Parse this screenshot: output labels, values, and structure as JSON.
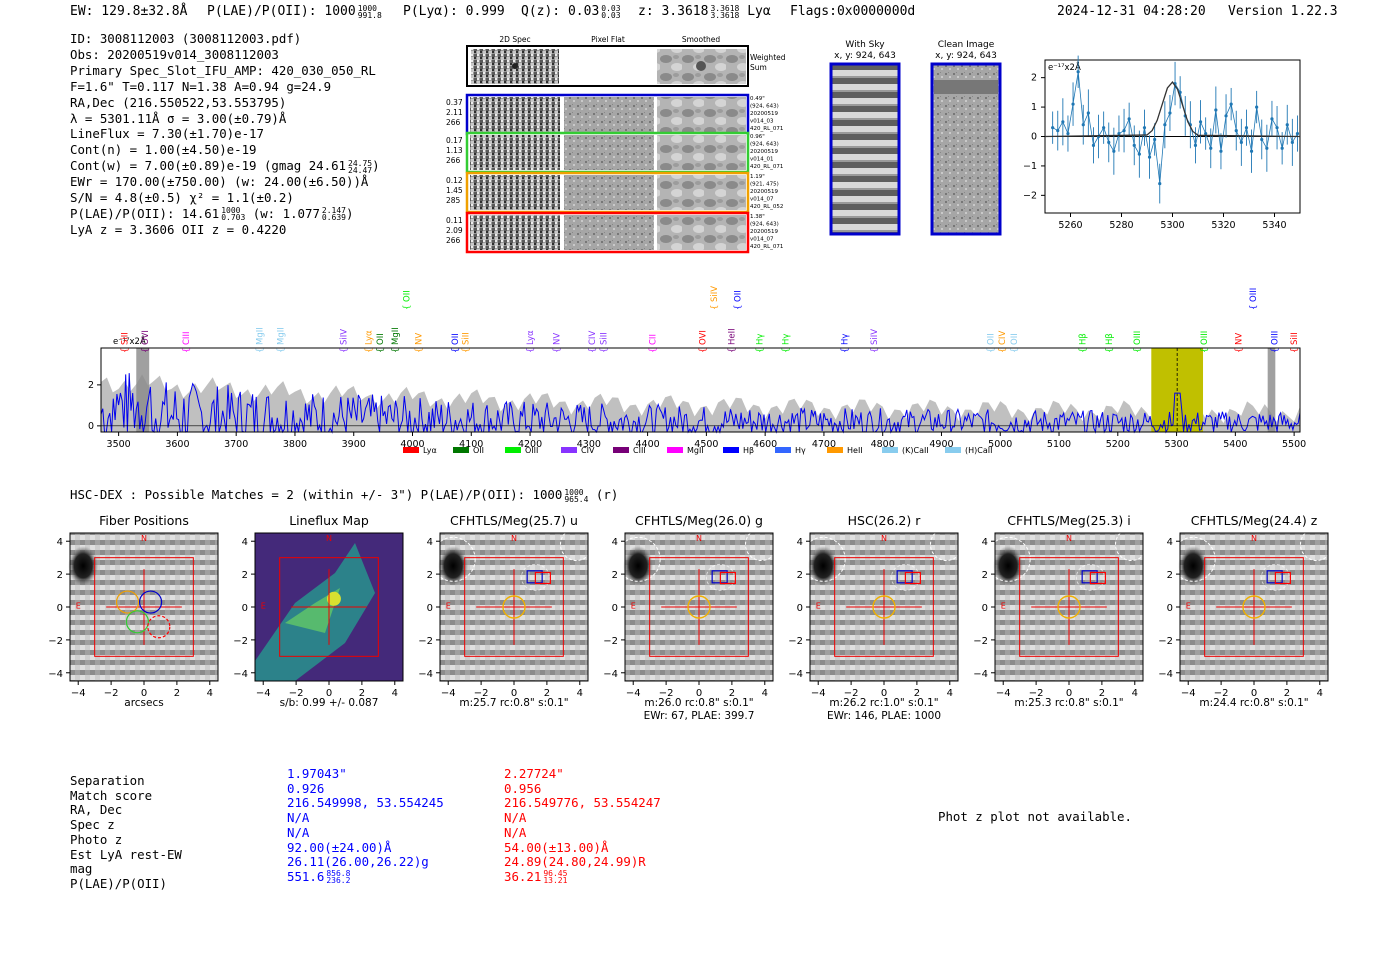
{
  "header": {
    "ew": "EW: 129.8±32.8Å",
    "plae": "P(LAE)/P(OII): 1000",
    "plae_hi": "1000",
    "plae_lo": "991.8",
    "plya": "P(Lyα): 0.999",
    "qz": "Q(z): 0.03",
    "qz_hi": "0.03",
    "qz_lo": "0.03",
    "z": "z: 3.3618",
    "z_hi": "3.3618",
    "z_lo": "3.3618",
    "line": "Lyα",
    "flags": "Flags:0x0000000d",
    "timestamp": "2024-12-31 04:28:20",
    "version": "Version 1.22.3"
  },
  "info": {
    "id": "ID: 3008112003 (3008112003.pdf)",
    "obs": "Obs: 20200519v014_3008112003",
    "primary": "Primary Spec_Slot_IFU_AMP: 420_030_050_RL",
    "fparams": "F=1.6\"  T=0.117  N=1.38  A=0.94  g=24.9",
    "radec": "RA,Dec (216.550522,53.553795)",
    "lambda": "λ = 5301.11Å  σ = 3.00(±0.79)Å",
    "lineflux": "LineFlux = 7.30(±1.70)e-17",
    "contn": "Cont(n) = 1.00(±4.50)e-19",
    "contw": "Cont(w) = 7.00(±0.89)e-19 (gmag 24.61",
    "gmag_hi": "24.75",
    "gmag_lo": "24.47",
    "ewr": "EWr = 170.00(±750.00) (w: 24.00(±6.50))Å",
    "sn": "S/N = 4.8(±0.5)  χ² = 1.1(±0.2)",
    "plae": "P(LAE)/P(OII): 14.61",
    "plae_hi": "1000",
    "plae_lo": "0.703",
    "plae_w": "(w: 1.077",
    "plae_w_hi": "2.147",
    "plae_w_lo": "0.639",
    "lyaz": "LyA z = 3.3606  OII z = 0.4220"
  },
  "cutouts": {
    "col_2dspec": "2D Spec",
    "col_pixflat": "Pixel Flat",
    "col_smoothed": "Smoothed",
    "weighted": "Weighted",
    "sum": "Sum",
    "rows": [
      {
        "w": [
          "0.37",
          "2.11",
          "266"
        ],
        "meta": [
          "0.49\"",
          "(924, 643)",
          "20200519",
          "v014_03",
          "420_RL_071"
        ],
        "color": "#0000cc"
      },
      {
        "w": [
          "0.17",
          "1.13",
          "266"
        ],
        "meta": [
          "0.96\"",
          "(924, 643)",
          "20200519",
          "v014_01",
          "420_RL_071"
        ],
        "color": "#33cc33"
      },
      {
        "w": [
          "0.12",
          "1.45",
          "285"
        ],
        "meta": [
          "1.19\"",
          "(921, 475)",
          "20200519",
          "v014_07",
          "420_RL_052"
        ],
        "color": "#f0a000"
      },
      {
        "w": [
          "0.11",
          "2.09",
          "266"
        ],
        "meta": [
          "1.38\"",
          "(924, 643)",
          "20200519",
          "v014_07",
          "420_RL_071"
        ],
        "color": "#ff0000"
      }
    ]
  },
  "sky": {
    "with_sky": "With Sky",
    "with_sky_xy": "x, y: 924, 643",
    "clean": "Clean Image",
    "clean_xy": "x, y: 924, 643"
  },
  "zoom_plot": {
    "unit": "e⁻¹⁷x2Å"
  },
  "full_spec": {
    "unit": "e⁻¹⁷x2Å"
  },
  "hsc": {
    "line": "HSC-DEX : Possible Matches = 2 (within +/- 3\")  P(LAE)/P(OII): 1000",
    "hi": "1000",
    "lo": "965.4",
    "band": "(r)"
  },
  "panels": [
    {
      "title": "Fiber Positions",
      "caption": [
        "arcsecs"
      ]
    },
    {
      "title": "Lineflux Map",
      "caption": [
        "s/b: 0.99 +/- 0.087"
      ]
    },
    {
      "title": "CFHTLS/Meg(25.7) u",
      "caption": [
        "m:25.7 rc:0.8\"  s:0.1\""
      ]
    },
    {
      "title": "CFHTLS/Meg(26.0) g",
      "caption": [
        "m:26.0 rc:0.8\"  s:0.1\"",
        "EWr: 67, PLAE: 399.7"
      ]
    },
    {
      "title": "HSC(26.2) r",
      "caption": [
        "m:26.2 rc:1.0\"  s:0.1\"",
        "EWr: 146, PLAE: 1000"
      ]
    },
    {
      "title": "CFHTLS/Meg(25.3) i",
      "caption": [
        "m:25.3 rc:0.8\"  s:0.1\""
      ]
    },
    {
      "title": "CFHTLS/Meg(24.4) z",
      "caption": [
        "m:24.4 rc:0.8\"  s:0.1\""
      ]
    }
  ],
  "matches": {
    "labels": [
      "Separation",
      "Match score",
      "RA, Dec",
      "Spec z",
      "Photo z",
      "Est LyA rest-EW",
      "mag",
      "P(LAE)/P(OII)"
    ],
    "blue": [
      "1.97043\"",
      "0.926",
      "216.549998, 53.554245",
      "N/A",
      "N/A",
      "92.00(±24.00)Å",
      "26.11(26.00,26.22)g",
      "551.6"
    ],
    "blue_hi": "856.8",
    "blue_lo": "236.2",
    "red": [
      "2.27724\"",
      "0.956",
      "216.549776, 53.554247",
      "N/A",
      "N/A",
      "54.00(±13.00)Å",
      "24.89(24.80,24.99)R",
      "36.21"
    ],
    "red_hi": "96.45",
    "red_lo": "13.21",
    "photz_msg": "Phot z plot not available."
  },
  "chart_data": [
    {
      "type": "line",
      "title": "",
      "xlabel": "",
      "ylabel": "e-17x2Å",
      "xlim": [
        5250,
        5350
      ],
      "ylim": [
        -2.6,
        2.6
      ],
      "xticks": [
        5260,
        5280,
        5300,
        5320,
        5340
      ],
      "yticks": [
        -2,
        -1,
        0,
        1,
        2
      ],
      "series": [
        {
          "name": "data",
          "x": [
            5253,
            5255,
            5257,
            5259,
            5261,
            5263,
            5265,
            5267,
            5269,
            5271,
            5273,
            5275,
            5277,
            5279,
            5281,
            5283,
            5285,
            5287,
            5289,
            5291,
            5293,
            5295,
            5297,
            5299,
            5301,
            5303,
            5305,
            5307,
            5309,
            5311,
            5313,
            5315,
            5317,
            5319,
            5321,
            5323,
            5325,
            5327,
            5329,
            5331,
            5333,
            5335,
            5337,
            5339,
            5341,
            5343,
            5345,
            5347,
            5349
          ],
          "values": [
            0.3,
            0.2,
            0.5,
            0.1,
            1.1,
            2.2,
            0.4,
            0.8,
            -0.3,
            0.0,
            0.3,
            -0.2,
            -0.5,
            0.1,
            0.2,
            0.6,
            -0.3,
            -0.6,
            0.3,
            -0.7,
            -0.1,
            -1.6,
            0.4,
            0.8,
            1.8,
            1.5,
            0.7,
            0.4,
            -0.3,
            0.5,
            0.1,
            -0.4,
            0.9,
            -0.5,
            0.7,
            1.1,
            0.2,
            -0.2,
            0.3,
            -0.5,
            1.0,
            -0.1,
            -0.4,
            0.6,
            0.3,
            -0.4,
            0.4,
            -0.2,
            0.1
          ]
        },
        {
          "name": "gaussian fit",
          "x": [
            5250,
            5290,
            5292,
            5294,
            5296,
            5298,
            5300,
            5302,
            5304,
            5306,
            5308,
            5310,
            5350
          ],
          "values": [
            0,
            0.05,
            0.2,
            0.55,
            1.1,
            1.65,
            1.85,
            1.6,
            1.05,
            0.5,
            0.17,
            0.04,
            0
          ]
        }
      ]
    },
    {
      "type": "line",
      "title": "",
      "ylabel": "e-17x2Å",
      "xlim": [
        3470,
        5510
      ],
      "ylim": [
        -0.3,
        3.8
      ],
      "xticks": [
        3500,
        3600,
        3700,
        3800,
        3900,
        4000,
        4100,
        4200,
        4300,
        4400,
        4500,
        4600,
        4700,
        4800,
        4900,
        5000,
        5100,
        5200,
        5300,
        5400,
        5500
      ],
      "yticks": [
        0,
        2
      ],
      "highlight": [
        5257,
        5345
      ],
      "marker": 5301,
      "legend": [
        "Lyα",
        "OII",
        "OIII",
        "CIV",
        "CIII",
        "MgII",
        "Hβ",
        "Hγ",
        "HeII",
        "(K)CaII",
        "(H)CaII"
      ],
      "legend_colors": [
        "#ff0000",
        "#007700",
        "#00ee00",
        "#8833ff",
        "#770077",
        "#ff00ff",
        "#0000ff",
        "#3366ff",
        "#ff9900",
        "#88ccee",
        "#88ccee"
      ],
      "line_labels": [
        {
          "label": "SiII",
          "x": 3510,
          "color": "#ff0000",
          "row": 0
        },
        {
          "label": "OVI",
          "x": 3545,
          "color": "#770077",
          "row": 1
        },
        {
          "label": "CIII",
          "x": 3615,
          "color": "#ff00ff",
          "row": 0
        },
        {
          "label": "MgII",
          "x": 3740,
          "color": "#88ccee",
          "row": 1
        },
        {
          "label": "MgII",
          "x": 3775,
          "color": "#88ccee",
          "row": 1
        },
        {
          "label": "SiIV",
          "x": 3883,
          "color": "#8833ff",
          "row": 1
        },
        {
          "label": "Lyα",
          "x": 3925,
          "color": "#ff9900",
          "row": 0
        },
        {
          "label": "OII",
          "x": 3945,
          "color": "#007700",
          "row": 0
        },
        {
          "label": "MgII",
          "x": 3970,
          "color": "#007700",
          "row": 1
        },
        {
          "label": "OII",
          "x": 3990,
          "color": "#00ee00",
          "row": 3
        },
        {
          "label": "NV",
          "x": 4010,
          "color": "#ff9900",
          "row": 1
        },
        {
          "label": "OII",
          "x": 4072,
          "color": "#0000ff",
          "row": 0
        },
        {
          "label": "SiII",
          "x": 4090,
          "color": "#ff9900",
          "row": 0
        },
        {
          "label": "Lyα",
          "x": 4200,
          "color": "#8833ff",
          "row": 0
        },
        {
          "label": "NV",
          "x": 4245,
          "color": "#8833ff",
          "row": 1
        },
        {
          "label": "CIV",
          "x": 4305,
          "color": "#8833ff",
          "row": 1
        },
        {
          "label": "SiII",
          "x": 4325,
          "color": "#8833ff",
          "row": 0
        },
        {
          "label": "CII",
          "x": 4408,
          "color": "#ff00ff",
          "row": 0
        },
        {
          "label": "OVI",
          "x": 4493,
          "color": "#ff0000",
          "row": 1
        },
        {
          "label": "SiIV",
          "x": 4513,
          "color": "#ff9900",
          "row": 3
        },
        {
          "label": "HeII",
          "x": 4543,
          "color": "#770077",
          "row": 1
        },
        {
          "label": "OII",
          "x": 4553,
          "color": "#0000ff",
          "row": 3
        },
        {
          "label": "Hγ",
          "x": 4590,
          "color": "#00ee00",
          "row": 0
        },
        {
          "label": "Hγ",
          "x": 4635,
          "color": "#00ee00",
          "row": 0
        },
        {
          "label": "Hγ",
          "x": 4735,
          "color": "#0000ff",
          "row": 0
        },
        {
          "label": "SiIV",
          "x": 4785,
          "color": "#8833ff",
          "row": 1
        },
        {
          "label": "OII",
          "x": 4983,
          "color": "#88ccee",
          "row": 1
        },
        {
          "label": "CIV",
          "x": 5003,
          "color": "#ff9900",
          "row": 1
        },
        {
          "label": "OII",
          "x": 5023,
          "color": "#88ccee",
          "row": 1
        },
        {
          "label": "Hβ",
          "x": 5140,
          "color": "#00ee00",
          "row": 0
        },
        {
          "label": "Hβ",
          "x": 5185,
          "color": "#00ee00",
          "row": 0
        },
        {
          "label": "OIII",
          "x": 5233,
          "color": "#00ee00",
          "row": 0
        },
        {
          "label": "OIII",
          "x": 5347,
          "color": "#00ee00",
          "row": 0
        },
        {
          "label": "NV",
          "x": 5405,
          "color": "#ff0000",
          "row": 0
        },
        {
          "label": "OIII",
          "x": 5430,
          "color": "#0000ff",
          "row": 3
        },
        {
          "label": "OIII",
          "x": 5467,
          "color": "#0000ff",
          "row": 0
        },
        {
          "label": "SiII",
          "x": 5500,
          "color": "#ff0000",
          "row": 0
        }
      ]
    },
    {
      "type": "table",
      "title": "cutout axes",
      "xlim": [
        -4.5,
        4.5
      ],
      "ylim": [
        -4.5,
        4.5
      ],
      "xticks": [
        -4,
        -2,
        0,
        2,
        4
      ],
      "yticks": [
        -4,
        -2,
        0,
        2,
        4
      ],
      "compass_n": "N",
      "compass_e": "E"
    }
  ]
}
